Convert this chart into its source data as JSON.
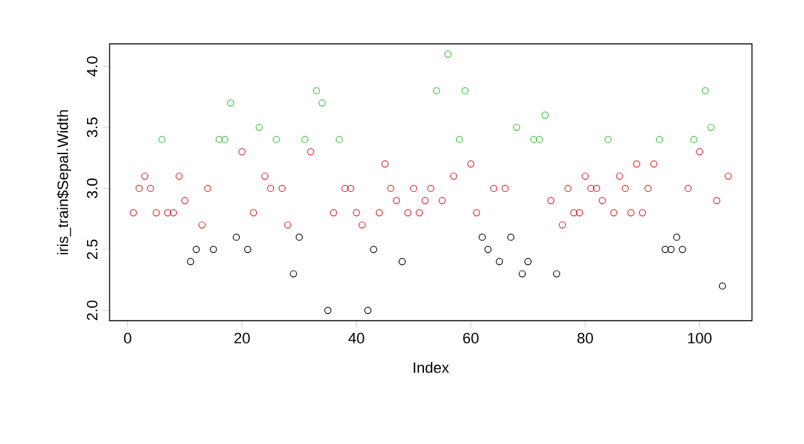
{
  "chart_data": {
    "type": "scatter",
    "xlabel": "Index",
    "ylabel": "iris_train$Sepal.Width",
    "marker": "circle",
    "grid": false,
    "xlim": [
      -3.16,
      109.16
    ],
    "ylim": [
      1.916,
      4.184
    ],
    "xticks": [
      0,
      20,
      40,
      60,
      80,
      100
    ],
    "yticks": [
      {
        "value": 2,
        "label": "2.0"
      },
      {
        "value": 2.5,
        "label": "2.5"
      },
      {
        "value": 3,
        "label": "3.0"
      },
      {
        "value": 3.5,
        "label": "3.5"
      },
      {
        "value": 4,
        "label": "4.0"
      }
    ],
    "series": [
      {
        "color": "#e0202a",
        "x": [
          1,
          2,
          3,
          4,
          5,
          7,
          8,
          9,
          10,
          13,
          14,
          20,
          22,
          24,
          25,
          27,
          28,
          32,
          36,
          38,
          39,
          40,
          41,
          44,
          45,
          46,
          47,
          49,
          50,
          51,
          52,
          53,
          55,
          57,
          60,
          61,
          64,
          66,
          74,
          76,
          77,
          78,
          79,
          80,
          81,
          82,
          83,
          85,
          86,
          87,
          88,
          89,
          90,
          91,
          92,
          98,
          100,
          103,
          105
        ],
        "values": [
          2.8,
          3.0,
          3.1,
          3.0,
          2.8,
          2.8,
          2.8,
          3.1,
          2.9,
          2.7,
          3.0,
          3.3,
          2.8,
          3.1,
          3.0,
          3.0,
          2.7,
          3.3,
          2.8,
          3.0,
          3.0,
          2.8,
          2.7,
          2.8,
          3.2,
          3.0,
          2.9,
          2.8,
          3.0,
          2.8,
          2.9,
          3.0,
          2.9,
          3.1,
          3.2,
          2.8,
          3.0,
          3.0,
          2.9,
          2.7,
          3.0,
          2.8,
          2.8,
          3.1,
          3.0,
          3.0,
          2.9,
          2.8,
          3.1,
          3.0,
          2.8,
          3.2,
          2.8,
          3.0,
          3.2,
          3.0,
          3.3,
          2.9,
          3.1
        ]
      },
      {
        "color": "#3cc03c",
        "x": [
          6,
          16,
          17,
          18,
          23,
          26,
          31,
          33,
          34,
          37,
          54,
          56,
          58,
          59,
          68,
          71,
          72,
          73,
          84,
          93,
          99,
          101,
          102
        ],
        "values": [
          3.4,
          3.4,
          3.4,
          3.7,
          3.5,
          3.4,
          3.4,
          3.8,
          3.7,
          3.4,
          3.8,
          4.1,
          3.4,
          3.8,
          3.5,
          3.4,
          3.4,
          3.6,
          3.4,
          3.4,
          3.4,
          3.8,
          3.5
        ]
      },
      {
        "color": "#000000",
        "x": [
          11,
          12,
          15,
          19,
          21,
          29,
          30,
          35,
          42,
          43,
          48,
          62,
          63,
          65,
          67,
          69,
          70,
          75,
          94,
          95,
          96,
          97,
          104
        ],
        "values": [
          2.4,
          2.5,
          2.5,
          2.6,
          2.5,
          2.3,
          2.6,
          2.0,
          2.0,
          2.5,
          2.4,
          2.6,
          2.5,
          2.4,
          2.6,
          2.3,
          2.4,
          2.3,
          2.5,
          2.5,
          2.6,
          2.5,
          2.2
        ]
      }
    ]
  }
}
